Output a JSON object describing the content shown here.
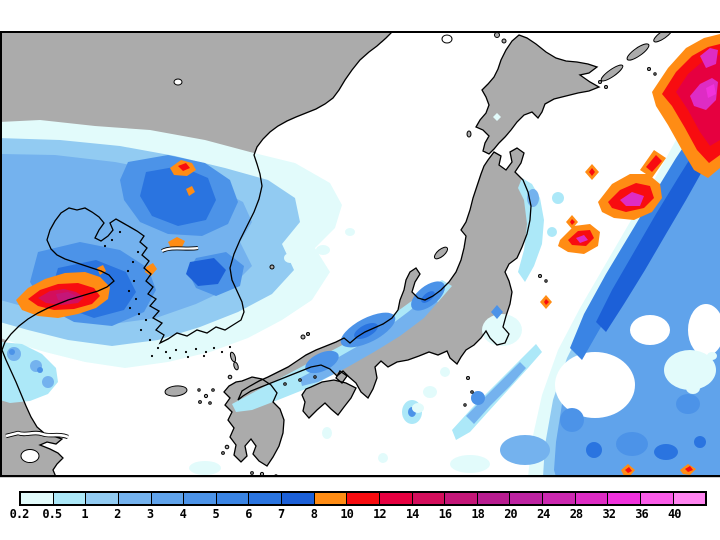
{
  "scale": {
    "unit_labels": [
      "0.2",
      "0.5",
      "1",
      "2",
      "3",
      "4",
      "5",
      "6",
      "7",
      "8",
      "10",
      "12",
      "14",
      "16",
      "18",
      "20",
      "24",
      "28",
      "32",
      "36",
      "40"
    ],
    "colors": [
      "#E2FBFB",
      "#ACE8F8",
      "#92CBF2",
      "#74B2EE",
      "#60A3EB",
      "#4C93E8",
      "#3A84E4",
      "#2A74E0",
      "#1C60D8",
      "#FF8C14",
      "#F80C10",
      "#E60040",
      "#D40E5C",
      "#C41678",
      "#B81C90",
      "#BE23A2",
      "#CC28B0",
      "#DE2CC4",
      "#F032DC",
      "#FA5CE8",
      "#FF84F0"
    ]
  },
  "map": {
    "land_color": "#ABABAB",
    "sea_color": "#FFFFFF",
    "coast_color": "#000000",
    "frame_color": "#000000"
  }
}
